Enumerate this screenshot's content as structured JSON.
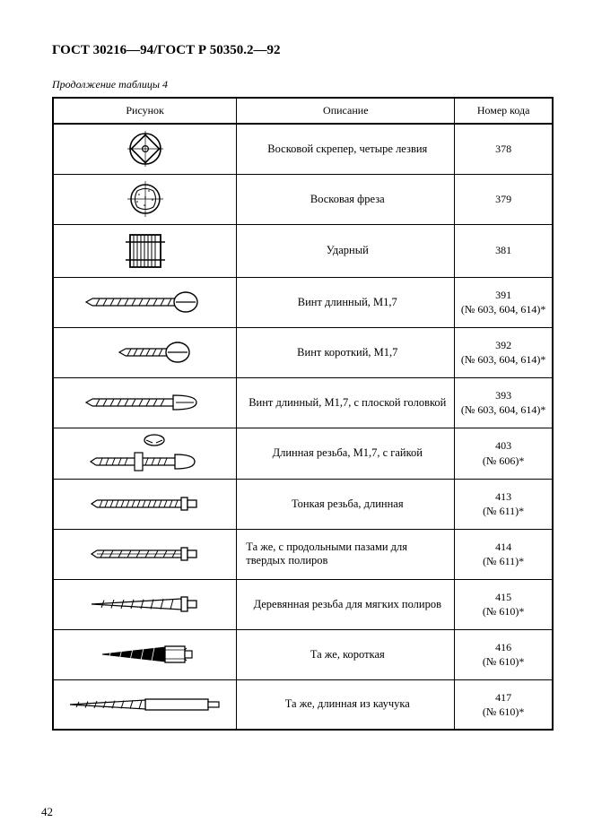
{
  "doc_title": "ГОСТ 30216—94/ГОСТ Р 50350.2—92",
  "table_caption": "Продолжение таблицы 4",
  "page_number": "42",
  "columns": {
    "figure": "Рисунок",
    "description": "Описание",
    "code": "Номер кода"
  },
  "rows": [
    {
      "desc": "Восковой скрепер, четыре лезвия",
      "code": "378"
    },
    {
      "desc": "Восковая фреза",
      "code": "379"
    },
    {
      "desc": "Ударный",
      "code": "381"
    },
    {
      "desc": "Винт длинный, М1,7",
      "code": "391\n(№ 603, 604, 614)*"
    },
    {
      "desc": "Винт короткий, М1,7",
      "code": "392\n(№ 603, 604, 614)*"
    },
    {
      "desc": "Винт длинный, М1,7, с плоской головкой",
      "code": "393\n(№ 603, 604, 614)*"
    },
    {
      "desc": "Длинная резьба, М1,7, с гайкой",
      "code": "403\n(№ 606)*"
    },
    {
      "desc": "Тонкая резьба, длинная",
      "code": "413\n(№ 611)*"
    },
    {
      "desc": "    Та же, с продольными пазами для твердых полиров",
      "code": "414\n(№ 611)*",
      "indent": true
    },
    {
      "desc": "Деревянная резьба для мягких полиров",
      "code": "415\n(№ 610)*"
    },
    {
      "desc": "Та же, короткая",
      "code": "416\n(№ 610)*"
    },
    {
      "desc": "Та же, длинная из каучука",
      "code": "417\n(№ 610)*"
    }
  ],
  "svg_stroke": "#000000",
  "svg_fill": "#ffffff"
}
